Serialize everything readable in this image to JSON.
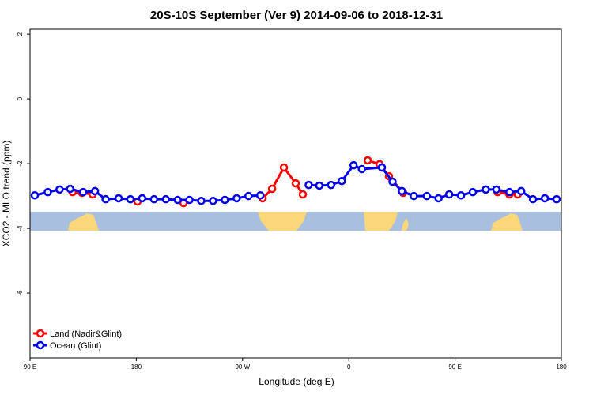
{
  "chart_data": {
    "type": "line",
    "title": "20S-10S September (Ver 9)   2014-09-06 to 2018-12-31",
    "x_label": "Longitude (deg E)",
    "y_label": "XCO2 - MLO trend (ppm)",
    "xlim": [
      -270,
      180
    ],
    "xticks": [
      {
        "value": -270,
        "label": "90 E"
      },
      {
        "value": -180,
        "label": "180"
      },
      {
        "value": -90,
        "label": "90 W"
      },
      0,
      {
        "value": 90,
        "label": "90 E"
      },
      180
    ],
    "ylim": [
      -8,
      2.15
    ],
    "yticks": [
      2,
      0,
      -2,
      -4,
      -6
    ],
    "legend": "bottom-left",
    "series": [
      {
        "name": "Land (Nadir&Glint)",
        "color": "#ff0000",
        "x": [
          -234,
          -226,
          -217,
          null,
          -179,
          null,
          -140,
          null,
          -73,
          -65,
          -55,
          -45,
          -39,
          null,
          16,
          26,
          34,
          46,
          null,
          126,
          136,
          143
        ],
        "values": [
          -2.88,
          -2.9,
          -2.95,
          null,
          -3.17,
          null,
          -3.22,
          null,
          -3.07,
          -2.78,
          -2.12,
          -2.61,
          -2.95,
          null,
          -1.9,
          -2.02,
          -2.39,
          -2.9,
          null,
          -2.88,
          -2.95,
          -2.95
        ]
      },
      {
        "name": "Ocean (Glint)",
        "color": "#0000ee",
        "x": [
          -266,
          -255,
          -245,
          -236,
          -225,
          -215,
          -206,
          -195,
          -185,
          -175,
          -165,
          -155,
          -145,
          -135,
          -125,
          -115,
          -105,
          -95,
          -85,
          -75,
          null,
          -34,
          -25,
          -15,
          -6,
          4,
          11,
          28,
          37,
          45,
          55,
          66,
          76,
          85,
          95,
          105,
          116,
          125,
          136,
          146,
          156,
          166,
          176
        ],
        "values": [
          -2.98,
          -2.88,
          -2.8,
          -2.78,
          -2.88,
          -2.85,
          -3.1,
          -3.07,
          -3.1,
          -3.07,
          -3.1,
          -3.1,
          -3.12,
          -3.12,
          -3.15,
          -3.15,
          -3.12,
          -3.07,
          -3.0,
          -2.98,
          null,
          -2.66,
          -2.68,
          -2.66,
          -2.54,
          -2.05,
          -2.17,
          -2.12,
          -2.56,
          -2.85,
          -3.0,
          -3.0,
          -3.07,
          -2.95,
          -2.98,
          -2.88,
          -2.8,
          -2.8,
          -2.88,
          -2.85,
          -3.1,
          -3.07,
          -3.1
        ]
      }
    ]
  }
}
